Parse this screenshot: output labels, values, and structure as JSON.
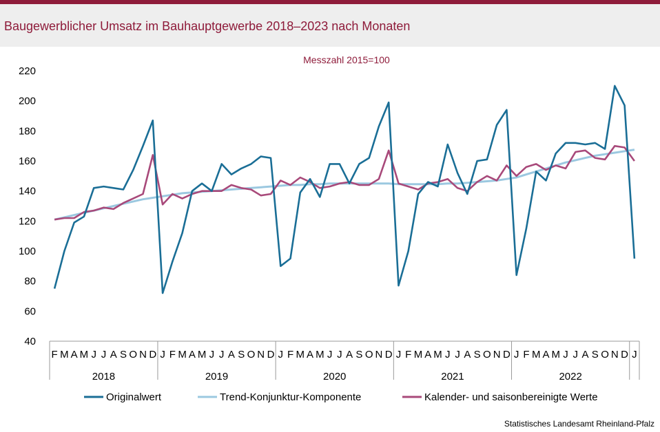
{
  "title": "Baugewerblicher Umsatz im Bauhauptgewerbe 2018–2023 nach Monaten",
  "source": "Statistisches Landesamt Rheinland-Pfalz",
  "colors": {
    "brand": "#8e1b3a",
    "original": "#1a6e96",
    "trend": "#9bc8e0",
    "adjusted": "#a8497a"
  },
  "chart_data": {
    "type": "line",
    "subtitle": "Messzahl 2015=100",
    "ylim": [
      40,
      220
    ],
    "yticks": [
      40,
      60,
      80,
      100,
      120,
      140,
      160,
      180,
      200,
      220
    ],
    "grid": false,
    "legend_position": "bottom",
    "month_labels": [
      "F",
      "M",
      "A",
      "M",
      "J",
      "J",
      "A",
      "S",
      "O",
      "N",
      "D",
      "J",
      "F",
      "M",
      "A",
      "M",
      "J",
      "J",
      "A",
      "S",
      "O",
      "N",
      "D",
      "J",
      "F",
      "M",
      "A",
      "M",
      "J",
      "J",
      "A",
      "S",
      "O",
      "N",
      "D",
      "J",
      "F",
      "M",
      "A",
      "M",
      "J",
      "J",
      "A",
      "S",
      "O",
      "N",
      "D",
      "J",
      "F",
      "M",
      "A",
      "M",
      "J",
      "J",
      "A",
      "S",
      "O",
      "N",
      "D",
      "J"
    ],
    "years": [
      {
        "label": "2018",
        "start": 0,
        "end": 11
      },
      {
        "label": "2019",
        "start": 11,
        "end": 23
      },
      {
        "label": "2020",
        "start": 23,
        "end": 35
      },
      {
        "label": "2021",
        "start": 35,
        "end": 47
      },
      {
        "label": "2022",
        "start": 47,
        "end": 59
      }
    ],
    "series": [
      {
        "name": "Originalwert",
        "color": "#1a6e96",
        "values": [
          75,
          100,
          119,
          123,
          142,
          143,
          142,
          141,
          154,
          170,
          187,
          72,
          93,
          112,
          140,
          145,
          140,
          158,
          151,
          155,
          158,
          163,
          162,
          90,
          95,
          139,
          148,
          136,
          158,
          158,
          145,
          158,
          162,
          183,
          199,
          77,
          100,
          138,
          146,
          143,
          171,
          152,
          138,
          160,
          161,
          184,
          194,
          84,
          115,
          153,
          147,
          165,
          172,
          172,
          171,
          172,
          168,
          210,
          197,
          95
        ]
      },
      {
        "name": "Trend-Konjunktur-Komponente",
        "color": "#9bc8e0",
        "values": [
          121,
          122.5,
          124,
          125.5,
          127,
          128.5,
          130,
          131.5,
          133,
          134.5,
          135.5,
          136.5,
          137.5,
          138.5,
          139,
          139.5,
          140,
          140.5,
          141,
          141.5,
          142,
          142.5,
          143,
          143.5,
          144,
          144,
          144.5,
          144.5,
          145,
          145,
          145,
          145,
          145,
          145,
          145,
          144.5,
          144.5,
          144.5,
          144.5,
          144.5,
          145,
          145,
          145.5,
          146,
          146.5,
          147,
          148,
          149,
          151,
          153,
          155,
          157,
          159,
          160.5,
          162,
          163.5,
          164.5,
          165.5,
          166.5,
          167.5
        ]
      },
      {
        "name": "Kalender- und saisonbereinigte Werte",
        "color": "#a8497a",
        "values": [
          121,
          122,
          122,
          126,
          127,
          129,
          128,
          132,
          135,
          138,
          164,
          131,
          138,
          135,
          138,
          140,
          140,
          140,
          144,
          142,
          141,
          137,
          138,
          147,
          144,
          149,
          146,
          142,
          143,
          145,
          146,
          144,
          144,
          148,
          167,
          145,
          143,
          141,
          145,
          146,
          148,
          142,
          140,
          146,
          150,
          147,
          157,
          150,
          156,
          158,
          154,
          157,
          155,
          166,
          167,
          162,
          161,
          170,
          169,
          160
        ]
      }
    ]
  }
}
